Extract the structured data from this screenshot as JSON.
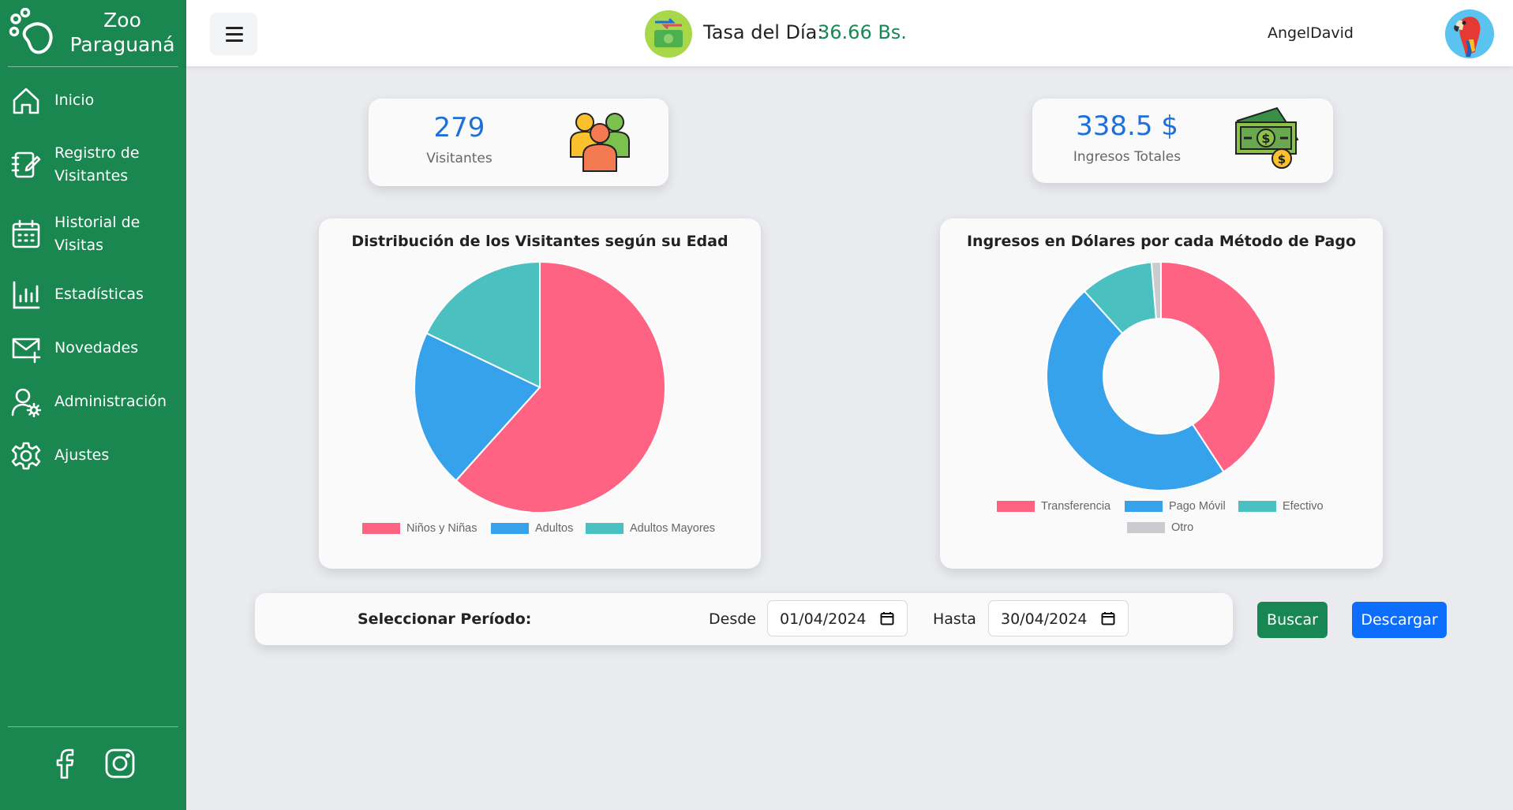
{
  "sidebar": {
    "brand": {
      "line1": "Zoo",
      "line2": "Paraguaná"
    },
    "items": [
      {
        "icon": "house-icon",
        "label": "Inicio"
      },
      {
        "icon": "notebook-edit-icon",
        "label": "Registro de Visitantes"
      },
      {
        "icon": "calendar-icon",
        "label": "Historial de Visitas"
      },
      {
        "icon": "bar-chart-icon",
        "label": "Estadísticas"
      },
      {
        "icon": "mail-plus-icon",
        "label": "Novedades"
      },
      {
        "icon": "user-gear-icon",
        "label": "Administración"
      },
      {
        "icon": "gear-icon",
        "label": "Ajustes"
      }
    ],
    "social": [
      "facebook-icon",
      "instagram-icon"
    ]
  },
  "topbar": {
    "rate_label": "Tasa del Día:",
    "rate_value": "36.66 Bs.",
    "username": "AngelDavid"
  },
  "stats": [
    {
      "value": "279",
      "label": "Visitantes",
      "icon": "people-group-icon"
    },
    {
      "value": "338.5 $",
      "label": "Ingresos Totales",
      "icon": "money-icon"
    }
  ],
  "colors": {
    "sidebar": "#19874f",
    "accent_blue": "#1f6fdb",
    "pink": "#ff6384",
    "blue": "#36a2eb",
    "teal": "#4bc0c0",
    "grey": "#c9cbcf"
  },
  "chart_data": [
    {
      "type": "pie",
      "title": "Distribución de los Visitantes según su Edad",
      "categories": [
        "Niños y Niñas",
        "Adultos",
        "Adultos Mayores"
      ],
      "values": [
        172,
        57,
        50
      ]
    },
    {
      "type": "pie",
      "variant": "doughnut",
      "title": "Ingresos en Dólares por cada Método de Pago",
      "categories": [
        "Transferencia",
        "Pago Móvil",
        "Efectivo",
        "Otro"
      ],
      "values": [
        138,
        161,
        35,
        4.5
      ]
    }
  ],
  "period": {
    "label": "Seleccionar Período:",
    "from_label": "Desde",
    "from_value": "01/04/2024",
    "to_label": "Hasta",
    "to_value": "30/04/2024"
  },
  "buttons": {
    "search": "Buscar",
    "download": "Descargar"
  }
}
